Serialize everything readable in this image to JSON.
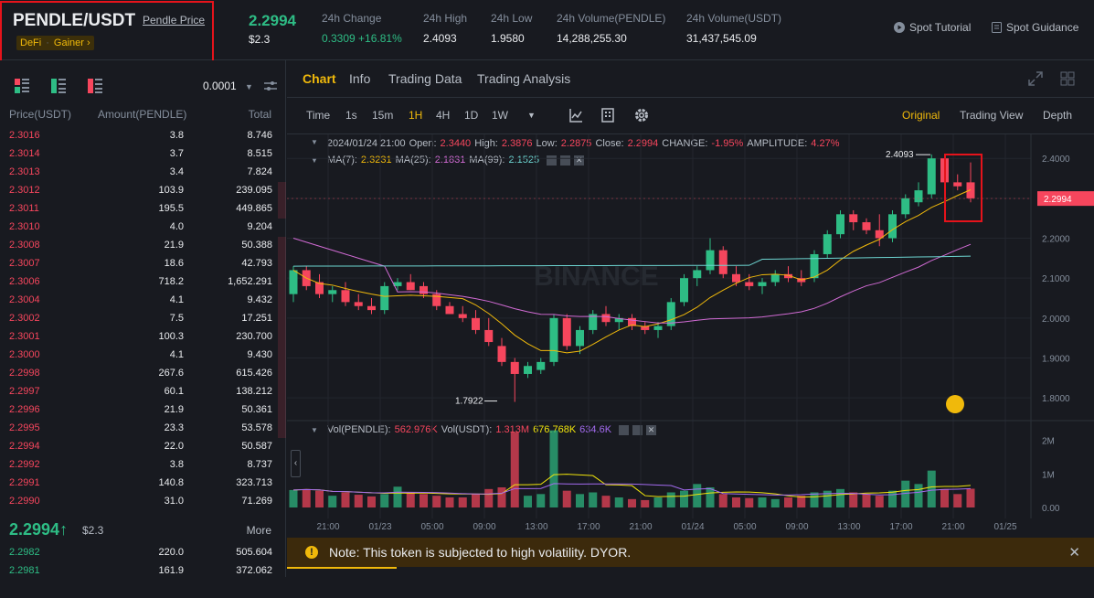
{
  "header": {
    "symbol": "PENDLE/USDT",
    "price_link": "Pendle Price",
    "tags": [
      "DeFi",
      "Gainer ›"
    ],
    "last_price": "2.2994",
    "last_price_usd": "$2.3",
    "stats": [
      {
        "label": "24h Change",
        "value": "0.3309 +16.81%",
        "color": "#2ebd85"
      },
      {
        "label": "24h High",
        "value": "2.4093"
      },
      {
        "label": "24h Low",
        "value": "1.9580"
      },
      {
        "label": "24h Volume(PENDLE)",
        "value": "14,288,255.30"
      },
      {
        "label": "24h Volume(USDT)",
        "value": "31,437,545.09"
      }
    ],
    "links": [
      "Spot Tutorial",
      "Spot Guidance"
    ]
  },
  "orderbook": {
    "tick": "0.0001",
    "columns": [
      "Price(USDT)",
      "Amount(PENDLE)",
      "Total"
    ],
    "asks": [
      {
        "price": "2.3016",
        "amount": "3.8",
        "total": "8.746",
        "depth": 0
      },
      {
        "price": "2.3014",
        "amount": "3.7",
        "total": "8.515",
        "depth": 0
      },
      {
        "price": "2.3013",
        "amount": "3.4",
        "total": "7.824",
        "depth": 0
      },
      {
        "price": "2.3012",
        "amount": "103.9",
        "total": "239.095",
        "depth": 0.03
      },
      {
        "price": "2.3011",
        "amount": "195.5",
        "total": "449.865",
        "depth": 0.03
      },
      {
        "price": "2.3010",
        "amount": "4.0",
        "total": "9.204",
        "depth": 0
      },
      {
        "price": "2.3008",
        "amount": "21.9",
        "total": "50.388",
        "depth": 0.03
      },
      {
        "price": "2.3007",
        "amount": "18.6",
        "total": "42.793",
        "depth": 0.03
      },
      {
        "price": "2.3006",
        "amount": "718.2",
        "total": "1,652.291",
        "depth": 0.03
      },
      {
        "price": "2.3004",
        "amount": "4.1",
        "total": "9.432",
        "depth": 0.03
      },
      {
        "price": "2.3002",
        "amount": "7.5",
        "total": "17.251",
        "depth": 0.03
      },
      {
        "price": "2.3001",
        "amount": "100.3",
        "total": "230.700",
        "depth": 0.03
      },
      {
        "price": "2.3000",
        "amount": "4.1",
        "total": "9.430",
        "depth": 0.03
      },
      {
        "price": "2.2998",
        "amount": "267.6",
        "total": "615.426",
        "depth": 0.03
      },
      {
        "price": "2.2997",
        "amount": "60.1",
        "total": "138.212",
        "depth": 0.03
      },
      {
        "price": "2.2996",
        "amount": "21.9",
        "total": "50.361",
        "depth": 0.03
      },
      {
        "price": "2.2995",
        "amount": "23.3",
        "total": "53.578",
        "depth": 0.03
      },
      {
        "price": "2.2994",
        "amount": "22.0",
        "total": "50.587",
        "depth": 0
      },
      {
        "price": "2.2992",
        "amount": "3.8",
        "total": "8.737",
        "depth": 0
      },
      {
        "price": "2.2991",
        "amount": "140.8",
        "total": "323.713",
        "depth": 0
      },
      {
        "price": "2.2990",
        "amount": "31.0",
        "total": "71.269",
        "depth": 0
      }
    ],
    "mid_price": "2.2994",
    "mid_arrow": "↑",
    "mid_usd": "$2.3",
    "more": "More",
    "bids": [
      {
        "price": "2.2982",
        "amount": "220.0",
        "total": "505.604"
      },
      {
        "price": "2.2981",
        "amount": "161.9",
        "total": "372.062"
      }
    ]
  },
  "chart_tabs": [
    "Chart",
    "Info",
    "Trading Data",
    "Trading Analysis"
  ],
  "toolbar": {
    "intervals": [
      "Time",
      "1s",
      "15m",
      "1H",
      "4H",
      "1D",
      "1W"
    ],
    "active_interval": "1H",
    "views": [
      "Original",
      "Trading View",
      "Depth"
    ],
    "active_view": "Original"
  },
  "ohlc_legend": {
    "date": "2024/01/24 21:00",
    "open_label": "Open:",
    "open": "2.3440",
    "high_label": "High:",
    "high": "2.3876",
    "low_label": "Low:",
    "low": "2.2875",
    "close_label": "Close:",
    "close": "2.2994",
    "change_label": "CHANGE:",
    "change": "-1.95%",
    "amp_label": "AMPLITUDE:",
    "amp": "4.27%"
  },
  "ma_legend": [
    {
      "label": "MA(7):",
      "value": "2.3231",
      "color": "#f0b90b"
    },
    {
      "label": "MA(25):",
      "value": "2.1831",
      "color": "#d16bd4"
    },
    {
      "label": "MA(99):",
      "value": "2.1525",
      "color": "#6dd5d1"
    }
  ],
  "vol_legend": [
    {
      "label": "Vol(PENDLE):",
      "value": "562.976K",
      "color": "#f6465d"
    },
    {
      "label": "Vol(USDT):",
      "value": "1.313M",
      "color": "#f6465d"
    },
    {
      "label": "",
      "value": "676.768K",
      "color": "#f0e40b"
    },
    {
      "label": "",
      "value": "634.6K",
      "color": "#a36bef"
    }
  ],
  "chart_data": {
    "type": "candlestick",
    "yticks": [
      "2.4000",
      "2.3000",
      "2.2000",
      "2.1000",
      "2.0000",
      "1.9000",
      "1.8000"
    ],
    "ylim": [
      1.75,
      2.46
    ],
    "current_price_label": "2.2994",
    "high_marker": "2.4093",
    "low_marker": "1.7922",
    "vol_ticks": [
      "2M",
      "1M",
      "0.00"
    ],
    "vol_max": 2400000,
    "xticks": [
      "21:00",
      "01/23",
      "05:00",
      "09:00",
      "13:00",
      "17:00",
      "21:00",
      "01/24",
      "05:00",
      "09:00",
      "13:00",
      "17:00",
      "21:00",
      "01/25"
    ],
    "candles": [
      [
        2.06,
        2.13,
        2.04,
        2.12
      ],
      [
        2.12,
        2.13,
        2.07,
        2.08
      ],
      [
        2.09,
        2.11,
        2.05,
        2.06
      ],
      [
        2.06,
        2.08,
        2.04,
        2.07
      ],
      [
        2.07,
        2.09,
        2.03,
        2.04
      ],
      [
        2.04,
        2.06,
        2.02,
        2.03
      ],
      [
        2.03,
        2.05,
        2.01,
        2.02
      ],
      [
        2.02,
        2.09,
        2.01,
        2.08
      ],
      [
        2.08,
        2.1,
        2.07,
        2.09
      ],
      [
        2.09,
        2.11,
        2.07,
        2.07
      ],
      [
        2.08,
        2.09,
        2.05,
        2.06
      ],
      [
        2.06,
        2.07,
        2.02,
        2.03
      ],
      [
        2.03,
        2.04,
        2.01,
        2.01
      ],
      [
        2.01,
        2.03,
        1.99,
        2.0
      ],
      [
        2.0,
        2.02,
        1.96,
        1.97
      ],
      [
        1.97,
        2.0,
        1.93,
        1.94
      ],
      [
        1.93,
        1.95,
        1.88,
        1.89
      ],
      [
        1.89,
        1.9,
        1.79,
        1.86
      ],
      [
        1.86,
        1.89,
        1.85,
        1.88
      ],
      [
        1.87,
        1.9,
        1.86,
        1.89
      ],
      [
        1.89,
        2.01,
        1.88,
        2.0
      ],
      [
        2.0,
        2.01,
        1.92,
        1.93
      ],
      [
        1.93,
        1.98,
        1.91,
        1.97
      ],
      [
        1.97,
        2.02,
        1.96,
        2.01
      ],
      [
        2.01,
        2.03,
        1.98,
        1.99
      ],
      [
        1.99,
        2.01,
        1.97,
        2.0
      ],
      [
        2.0,
        2.01,
        1.97,
        1.98
      ],
      [
        1.98,
        1.99,
        1.96,
        1.97
      ],
      [
        1.97,
        1.99,
        1.95,
        1.98
      ],
      [
        1.98,
        2.05,
        1.97,
        2.04
      ],
      [
        2.04,
        2.11,
        2.03,
        2.1
      ],
      [
        2.1,
        2.13,
        2.08,
        2.12
      ],
      [
        2.12,
        2.2,
        2.11,
        2.17
      ],
      [
        2.17,
        2.18,
        2.1,
        2.11
      ],
      [
        2.11,
        2.13,
        2.08,
        2.09
      ],
      [
        2.09,
        2.11,
        2.07,
        2.08
      ],
      [
        2.08,
        2.1,
        2.06,
        2.09
      ],
      [
        2.09,
        2.12,
        2.08,
        2.11
      ],
      [
        2.11,
        2.13,
        2.09,
        2.1
      ],
      [
        2.1,
        2.12,
        2.08,
        2.09
      ],
      [
        2.1,
        2.17,
        2.09,
        2.16
      ],
      [
        2.16,
        2.22,
        2.15,
        2.21
      ],
      [
        2.21,
        2.27,
        2.2,
        2.26
      ],
      [
        2.26,
        2.27,
        2.22,
        2.24
      ],
      [
        2.24,
        2.25,
        2.21,
        2.22
      ],
      [
        2.22,
        2.26,
        2.18,
        2.2
      ],
      [
        2.2,
        2.27,
        2.19,
        2.26
      ],
      [
        2.26,
        2.31,
        2.25,
        2.3
      ],
      [
        2.29,
        2.34,
        2.28,
        2.32
      ],
      [
        2.31,
        2.41,
        2.3,
        2.4
      ],
      [
        2.4,
        2.41,
        2.33,
        2.34
      ],
      [
        2.34,
        2.36,
        2.32,
        2.33
      ],
      [
        2.34,
        2.39,
        2.29,
        2.3
      ]
    ],
    "volumes": [
      0.52,
      0.55,
      0.5,
      0.35,
      0.45,
      0.38,
      0.33,
      0.4,
      0.62,
      0.45,
      0.4,
      0.35,
      0.3,
      0.3,
      0.4,
      0.55,
      0.6,
      2.25,
      0.35,
      0.4,
      2.3,
      0.5,
      0.4,
      0.45,
      0.35,
      0.3,
      0.25,
      0.22,
      0.3,
      0.45,
      0.5,
      0.7,
      0.6,
      0.4,
      0.3,
      0.28,
      0.3,
      0.25,
      0.3,
      0.35,
      0.45,
      0.5,
      0.55,
      0.45,
      0.4,
      0.35,
      0.5,
      0.8,
      0.7,
      1.1,
      0.55,
      0.4,
      0.56
    ]
  },
  "note": {
    "text": "Note: This token is subjected to high volatility. DYOR."
  }
}
